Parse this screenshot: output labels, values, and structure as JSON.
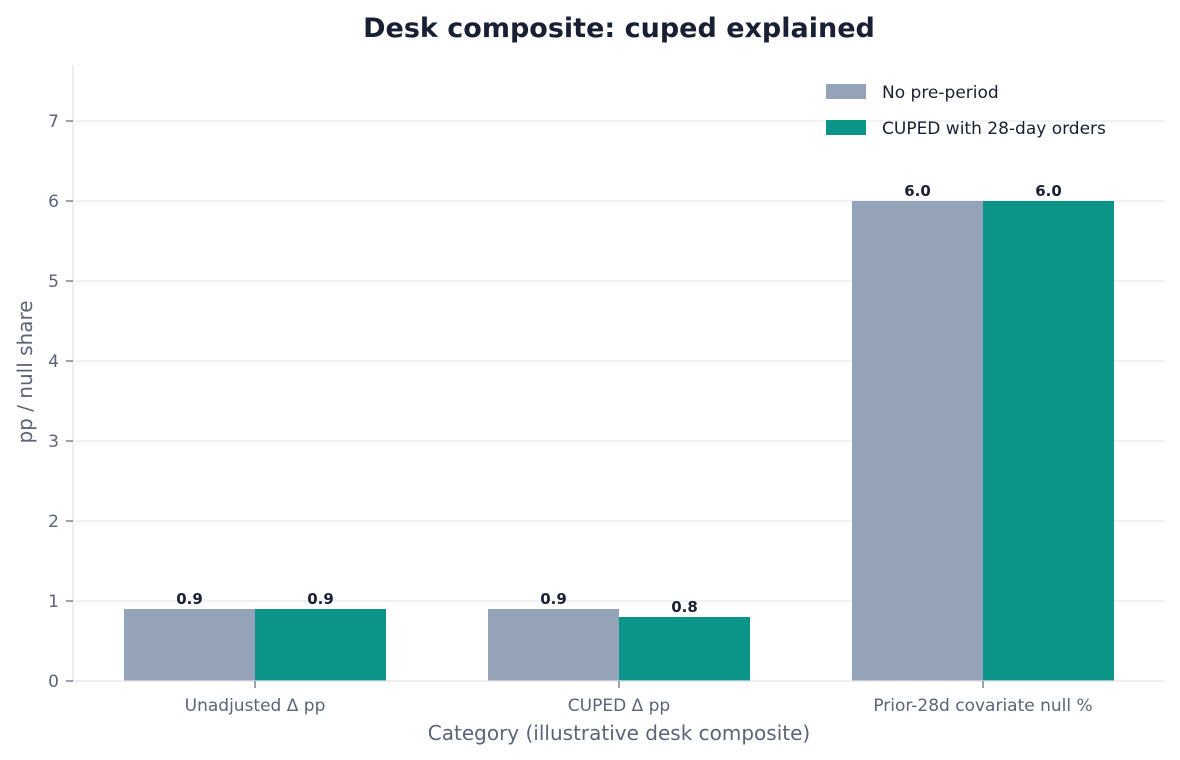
{
  "chart_data": {
    "type": "bar",
    "title": "Desk composite: cuped explained",
    "xlabel": "Category (illustrative desk composite)",
    "ylabel": "pp / null share",
    "categories": [
      "Unadjusted Δ pp",
      "CUPED Δ pp",
      "Prior-28d covariate null %"
    ],
    "series": [
      {
        "name": "No pre-period",
        "values": [
          0.9,
          0.9,
          6.0
        ],
        "color": "#94a3b8"
      },
      {
        "name": "CUPED with 28-day orders",
        "values": [
          0.9,
          0.8,
          6.0
        ],
        "color": "#0d9488"
      }
    ],
    "ylim": [
      0,
      7.7
    ],
    "yticks": [
      0,
      1,
      2,
      3,
      4,
      5,
      6,
      7
    ],
    "grid": "horizontal",
    "legend_position": "top-right",
    "data_labels": true
  }
}
